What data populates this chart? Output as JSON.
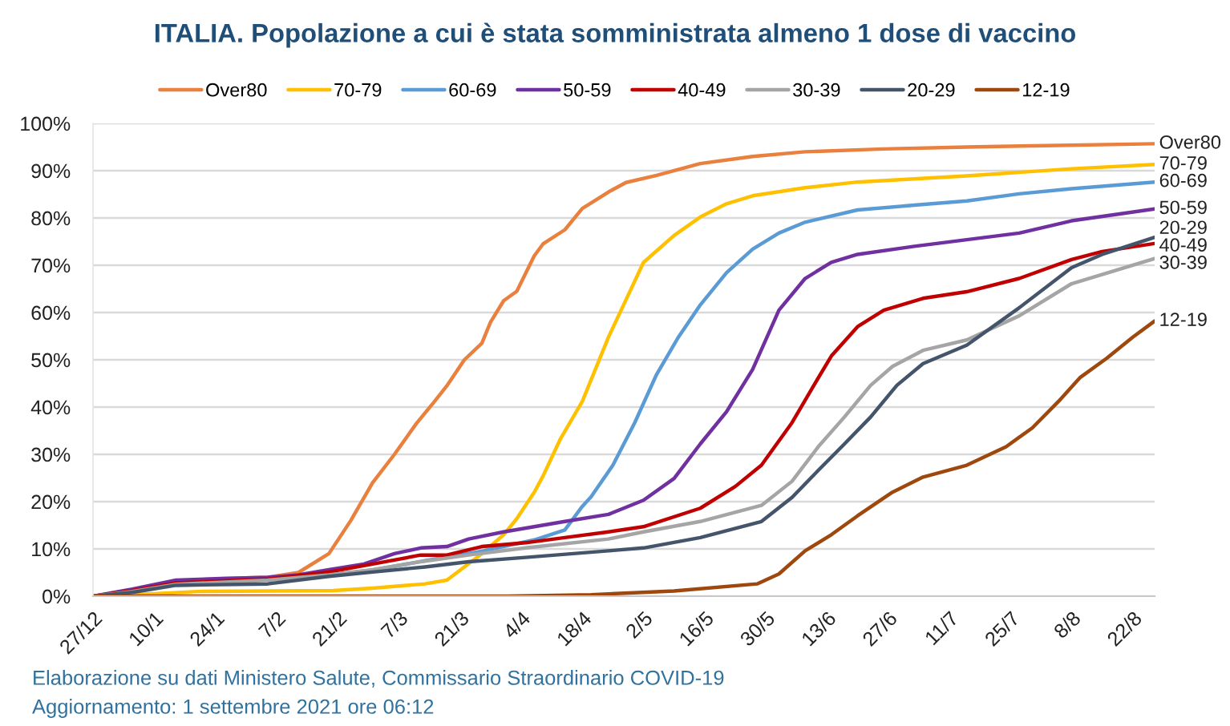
{
  "chart_data": {
    "type": "line",
    "title": "ITALIA. Popolazione a cui è stata somministrata almeno 1 dose di vaccino",
    "legend": "top",
    "grid": "y",
    "xlim": [
      "2020-12-27",
      "2021-08-27"
    ],
    "xticks": [
      {
        "value": "2020-12-27",
        "label": "27/12"
      },
      {
        "value": "2021-01-10",
        "label": "10/1"
      },
      {
        "value": "2021-01-24",
        "label": "24/1"
      },
      {
        "value": "2021-02-07",
        "label": "7/2"
      },
      {
        "value": "2021-02-21",
        "label": "21/2"
      },
      {
        "value": "2021-03-07",
        "label": "7/3"
      },
      {
        "value": "2021-03-21",
        "label": "21/3"
      },
      {
        "value": "2021-04-04",
        "label": "4/4"
      },
      {
        "value": "2021-04-18",
        "label": "18/4"
      },
      {
        "value": "2021-05-02",
        "label": "2/5"
      },
      {
        "value": "2021-05-16",
        "label": "16/5"
      },
      {
        "value": "2021-05-30",
        "label": "30/5"
      },
      {
        "value": "2021-06-13",
        "label": "13/6"
      },
      {
        "value": "2021-06-27",
        "label": "27/6"
      },
      {
        "value": "2021-07-11",
        "label": "11/7"
      },
      {
        "value": "2021-07-25",
        "label": "25/7"
      },
      {
        "value": "2021-08-08",
        "label": "8/8"
      },
      {
        "value": "2021-08-22",
        "label": "22/8"
      }
    ],
    "ylim": [
      0,
      100
    ],
    "yticks": [
      {
        "value": 0,
        "label": "0%"
      },
      {
        "value": 10,
        "label": "10%"
      },
      {
        "value": 20,
        "label": "20%"
      },
      {
        "value": 30,
        "label": "30%"
      },
      {
        "value": 40,
        "label": "40%"
      },
      {
        "value": 50,
        "label": "50%"
      },
      {
        "value": 60,
        "label": "60%"
      },
      {
        "value": 70,
        "label": "70%"
      },
      {
        "value": 80,
        "label": "80%"
      },
      {
        "value": 90,
        "label": "90%"
      },
      {
        "value": 100,
        "label": "100%"
      }
    ],
    "series": [
      {
        "name": "Over80",
        "color": "#e9803d",
        "x": [
          "2021-01-24",
          "2021-02-05",
          "2021-02-12",
          "2021-02-19",
          "2021-02-24",
          "2021-03-01",
          "2021-03-06",
          "2021-03-11",
          "2021-03-15",
          "2021-03-18",
          "2021-03-22",
          "2021-03-26",
          "2021-03-28",
          "2021-03-31",
          "2021-04-03",
          "2021-04-07",
          "2021-04-09",
          "2021-04-14",
          "2021-04-18",
          "2021-04-24",
          "2021-04-28",
          "2021-05-05",
          "2021-05-15",
          "2021-05-27",
          "2021-06-08",
          "2021-06-26",
          "2021-07-15",
          "2021-08-02",
          "2021-08-27"
        ],
        "values": [
          3.7,
          4.0,
          5.0,
          9.0,
          16,
          24,
          30,
          36.5,
          41,
          44.5,
          50,
          53.5,
          58,
          62.5,
          64.5,
          72,
          74.5,
          77.5,
          82,
          85.5,
          87.5,
          89,
          91.5,
          93,
          94,
          94.6,
          95,
          95.3,
          95.7
        ]
      },
      {
        "name": "70-79",
        "color": "#ffc000",
        "x": [
          "2020-12-27",
          "2021-01-10",
          "2021-01-20",
          "2021-02-20",
          "2021-03-01",
          "2021-03-13",
          "2021-03-18",
          "2021-03-22",
          "2021-03-26",
          "2021-03-31",
          "2021-04-03",
          "2021-04-07",
          "2021-04-09",
          "2021-04-13",
          "2021-04-18",
          "2021-04-24",
          "2021-04-28",
          "2021-05-02",
          "2021-05-09",
          "2021-05-15",
          "2021-05-21",
          "2021-05-27",
          "2021-06-08",
          "2021-06-20",
          "2021-07-15",
          "2021-08-08",
          "2021-08-27"
        ],
        "values": [
          0,
          0.5,
          1.0,
          1.2,
          1.7,
          2.6,
          3.4,
          6.2,
          9,
          13,
          16.4,
          22,
          25.4,
          33.3,
          41.2,
          54.8,
          62.7,
          70.6,
          76.3,
          80.2,
          83,
          84.7,
          86.4,
          87.6,
          88.9,
          90.4,
          91.3
        ]
      },
      {
        "name": "60-69",
        "color": "#5b9bd5",
        "x": [
          "2021-02-19",
          "2021-03-01",
          "2021-03-13",
          "2021-03-26",
          "2021-04-07",
          "2021-04-14",
          "2021-04-18",
          "2021-04-20",
          "2021-04-25",
          "2021-04-30",
          "2021-05-05",
          "2021-05-10",
          "2021-05-15",
          "2021-05-21",
          "2021-05-27",
          "2021-06-02",
          "2021-06-08",
          "2021-06-20",
          "2021-07-03",
          "2021-07-15",
          "2021-07-27",
          "2021-08-08",
          "2021-08-27"
        ],
        "values": [
          4.5,
          5.5,
          7.5,
          9.5,
          11.9,
          14,
          19,
          21,
          27.7,
          36.7,
          46.9,
          54.8,
          61.6,
          68.4,
          73.4,
          76.8,
          79.1,
          81.7,
          82.7,
          83.6,
          85.1,
          86.2,
          87.6
        ]
      },
      {
        "name": "50-59",
        "color": "#7030a0",
        "x": [
          "2020-12-27",
          "2021-01-05",
          "2021-01-15",
          "2021-01-24",
          "2021-02-05",
          "2021-02-12",
          "2021-02-19",
          "2021-02-27",
          "2021-03-06",
          "2021-03-12",
          "2021-03-18",
          "2021-03-23",
          "2021-03-31",
          "2021-04-07",
          "2021-04-14",
          "2021-04-24",
          "2021-05-02",
          "2021-05-09",
          "2021-05-15",
          "2021-05-21",
          "2021-05-27",
          "2021-06-02",
          "2021-06-08",
          "2021-06-14",
          "2021-06-20",
          "2021-07-03",
          "2021-07-15",
          "2021-07-27",
          "2021-08-08",
          "2021-08-27"
        ],
        "values": [
          0,
          1.5,
          3.4,
          3.7,
          4.0,
          4.5,
          5.6,
          6.8,
          9,
          10.2,
          10.5,
          12.1,
          13.6,
          14.7,
          15.8,
          17.3,
          20.3,
          24.9,
          32.2,
          39,
          48,
          60.5,
          67.2,
          70.6,
          72.3,
          74,
          75.4,
          76.8,
          79.4,
          81.9
        ]
      },
      {
        "name": "40-49",
        "color": "#c00000",
        "x": [
          "2020-12-27",
          "2021-01-05",
          "2021-01-15",
          "2021-02-05",
          "2021-02-19",
          "2021-03-01",
          "2021-03-12",
          "2021-03-18",
          "2021-03-26",
          "2021-04-05",
          "2021-04-14",
          "2021-04-24",
          "2021-05-02",
          "2021-05-15",
          "2021-05-23",
          "2021-05-29",
          "2021-06-05",
          "2021-06-10",
          "2021-06-14",
          "2021-06-20",
          "2021-06-26",
          "2021-07-05",
          "2021-07-15",
          "2021-07-27",
          "2021-08-08",
          "2021-08-15",
          "2021-08-27"
        ],
        "values": [
          0,
          1.2,
          2.8,
          3.6,
          5.1,
          6.8,
          8.7,
          8.7,
          10.5,
          11.3,
          12.4,
          13.6,
          14.7,
          18.6,
          23.2,
          27.7,
          36.7,
          44.6,
          50.8,
          57,
          60.5,
          63,
          64.4,
          67.2,
          71.2,
          72.9,
          74.6
        ]
      },
      {
        "name": "30-39",
        "color": "#a5a5a5",
        "x": [
          "2020-12-27",
          "2021-01-05",
          "2021-01-15",
          "2021-02-05",
          "2021-02-19",
          "2021-03-01",
          "2021-03-12",
          "2021-03-23",
          "2021-04-05",
          "2021-04-24",
          "2021-05-02",
          "2021-05-15",
          "2021-05-29",
          "2021-06-05",
          "2021-06-11",
          "2021-06-17",
          "2021-06-23",
          "2021-06-28",
          "2021-07-05",
          "2021-07-15",
          "2021-07-27",
          "2021-08-08",
          "2021-08-27"
        ],
        "values": [
          0,
          1.0,
          2.5,
          3.4,
          4.5,
          5.6,
          7.3,
          8.7,
          10.2,
          12.1,
          13.6,
          15.8,
          19.2,
          24.3,
          31.6,
          37.9,
          44.6,
          48.6,
          52,
          54.2,
          59.3,
          66.1,
          71.4
        ]
      },
      {
        "name": "20-29",
        "color": "#44546a",
        "x": [
          "2020-12-27",
          "2021-01-05",
          "2021-01-15",
          "2021-02-05",
          "2021-02-19",
          "2021-03-01",
          "2021-03-13",
          "2021-03-23",
          "2021-04-05",
          "2021-04-24",
          "2021-05-02",
          "2021-05-15",
          "2021-05-29",
          "2021-06-05",
          "2021-06-11",
          "2021-06-17",
          "2021-06-23",
          "2021-06-29",
          "2021-07-05",
          "2021-07-15",
          "2021-07-27",
          "2021-08-08",
          "2021-08-15",
          "2021-08-27"
        ],
        "values": [
          0,
          0.8,
          2.3,
          2.6,
          4.2,
          5.1,
          6.2,
          7.3,
          8.2,
          9.6,
          10.2,
          12.4,
          15.8,
          20.9,
          26.6,
          32.2,
          37.9,
          44.6,
          49.2,
          53.1,
          61,
          69.5,
          72.3,
          75.9
        ]
      },
      {
        "name": "12-19",
        "color": "#9e480e",
        "x": [
          "2020-12-27",
          "2021-04-01",
          "2021-04-20",
          "2021-05-09",
          "2021-05-28",
          "2021-06-02",
          "2021-06-08",
          "2021-06-14",
          "2021-06-20",
          "2021-06-28",
          "2021-07-05",
          "2021-07-15",
          "2021-07-24",
          "2021-07-30",
          "2021-08-05",
          "2021-08-10",
          "2021-08-16",
          "2021-08-22",
          "2021-08-27"
        ],
        "values": [
          0,
          0,
          0.3,
          1.1,
          2.6,
          4.7,
          9.6,
          13,
          17,
          22,
          25.2,
          27.7,
          31.6,
          35.6,
          41.2,
          46.3,
          50.3,
          54.8,
          58.2
        ]
      }
    ],
    "annotations": [
      "Elaborazione su dati Ministero Salute, Commissario Straordinario COVID-19",
      "Aggiornamento: 1 settembre 2021 ore 06:12"
    ]
  }
}
